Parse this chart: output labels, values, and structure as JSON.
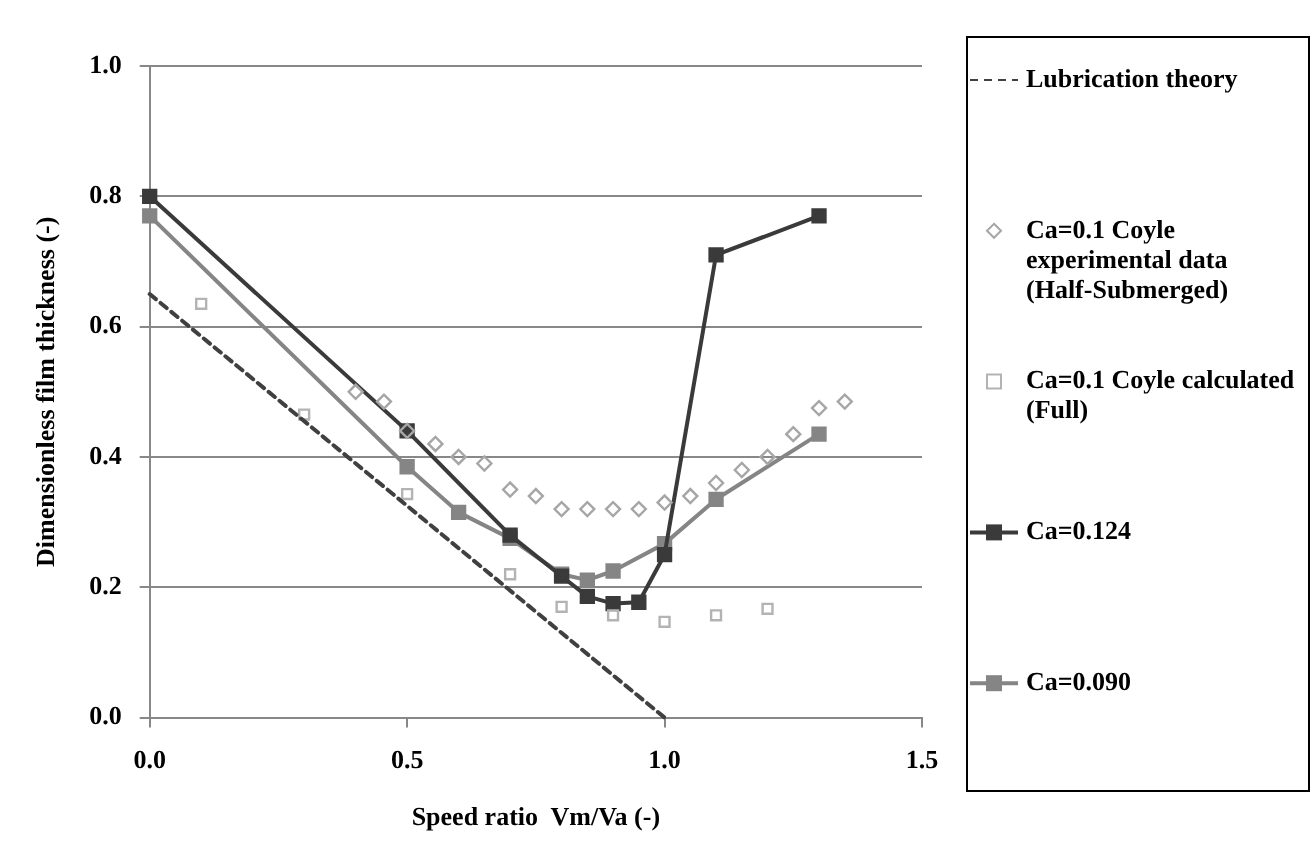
{
  "chart_data": {
    "type": "line",
    "xlabel": "Speed ratio  Vm/Va (-)",
    "ylabel": "Dimensionless film thickness (-)",
    "xlim": [
      0,
      1.5
    ],
    "xticks": [
      {
        "value": 0,
        "label": "0.0"
      },
      {
        "value": 0.5,
        "label": "0.5"
      },
      {
        "value": 1,
        "label": "1.0"
      },
      {
        "value": 1.5,
        "label": "1.5"
      }
    ],
    "ylim": [
      0,
      1
    ],
    "yticks": [
      {
        "value": 0,
        "label": "0.0"
      },
      {
        "value": 0.2,
        "label": "0.2"
      },
      {
        "value": 0.4,
        "label": "0.4"
      },
      {
        "value": 0.6,
        "label": "0.6"
      },
      {
        "value": 0.8,
        "label": "0.8"
      },
      {
        "value": 1,
        "label": "1.0"
      }
    ],
    "grid": "y",
    "legend": "right",
    "series": [
      {
        "name": "Lubrication theory",
        "type": "line",
        "color": "#404040",
        "line_style": "dashed",
        "marker": "none",
        "x": [
          0,
          1
        ],
        "values": [
          0.65,
          0
        ]
      },
      {
        "name": "Ca=0.1 Coyle experimental data (Half-Submerged)",
        "type": "scatter",
        "color": "#a6a6a6",
        "marker": "diamond",
        "x": [
          0.4,
          0.455,
          0.5,
          0.555,
          0.6,
          0.65,
          0.7,
          0.75,
          0.8,
          0.85,
          0.9,
          0.95,
          1.0,
          1.05,
          1.1,
          1.15,
          1.2,
          1.25,
          1.3,
          1.35
        ],
        "values": [
          0.5,
          0.485,
          0.44,
          0.42,
          0.4,
          0.39,
          0.35,
          0.34,
          0.32,
          0.32,
          0.32,
          0.32,
          0.33,
          0.34,
          0.36,
          0.38,
          0.4,
          0.435,
          0.475,
          0.485
        ]
      },
      {
        "name": " Ca=0.1 Coyle calculated (Full)",
        "type": "scatter",
        "color": "#b3b3b3",
        "marker": "square",
        "x": [
          0.1,
          0.3,
          0.5,
          0.7,
          0.8,
          0.9,
          1.0,
          1.1,
          1.2
        ],
        "values": [
          0.635,
          0.465,
          0.343,
          0.22,
          0.17,
          0.157,
          0.147,
          0.157,
          0.167
        ]
      },
      {
        "name": "Ca=0.124",
        "type": "line",
        "color": "#3a3a3a",
        "marker": "square",
        "line_style": "solid",
        "x": [
          0,
          0.5,
          0.7,
          0.8,
          0.85,
          0.9,
          0.95,
          1.0,
          1.1,
          1.3
        ],
        "values": [
          0.8,
          0.44,
          0.28,
          0.217,
          0.186,
          0.175,
          0.177,
          0.25,
          0.71,
          0.77
        ]
      },
      {
        "name": "Ca=0.090",
        "type": "line",
        "color": "#858585",
        "marker": "square",
        "line_style": "solid",
        "x": [
          0,
          0.5,
          0.6,
          0.7,
          0.8,
          0.85,
          0.9,
          1.0,
          1.1,
          1.3
        ],
        "values": [
          0.77,
          0.385,
          0.315,
          0.275,
          0.22,
          0.211,
          0.225,
          0.267,
          0.335,
          0.435
        ]
      }
    ]
  }
}
